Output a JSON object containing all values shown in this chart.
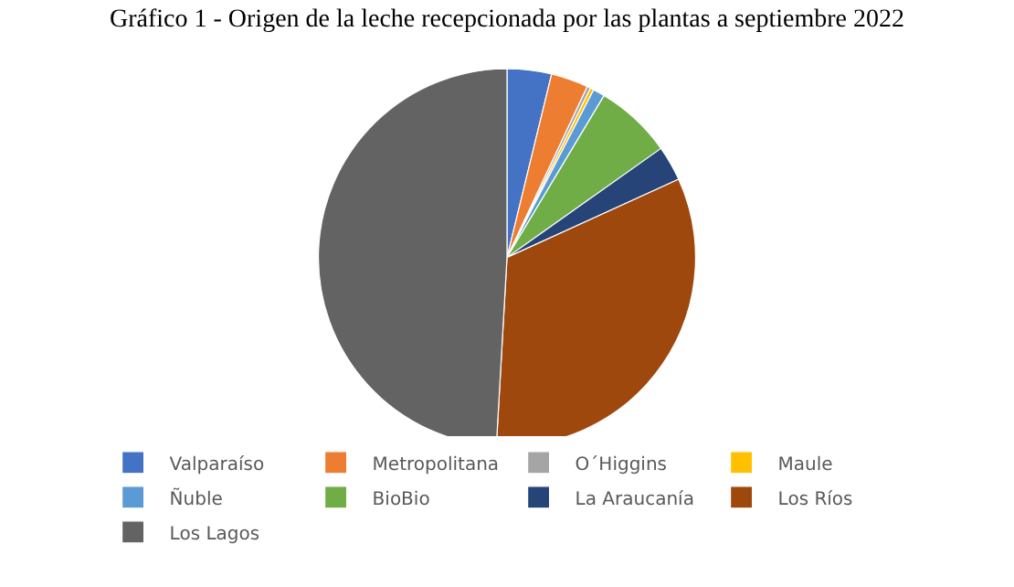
{
  "chart_data": {
    "type": "pie",
    "title": "Gráfico 1 - Origen de la leche recepcionada por las plantas a septiembre 2022",
    "categories": [
      "Valparaíso",
      "Metropolitana",
      "O´Higgins",
      "Maule",
      "Ñuble",
      "BioBio",
      "La Araucanía",
      "Los Ríos",
      "Los Lagos"
    ],
    "values": [
      3.8,
      3.2,
      0.3,
      0.3,
      1.0,
      6.6,
      3.0,
      32.7,
      49.1
    ],
    "colors": [
      "#4472c4",
      "#ed7d31",
      "#a5a5a5",
      "#ffc000",
      "#5b9bd5",
      "#70ad47",
      "#264478",
      "#9e480e",
      "#636363"
    ],
    "legend": "bottom"
  }
}
